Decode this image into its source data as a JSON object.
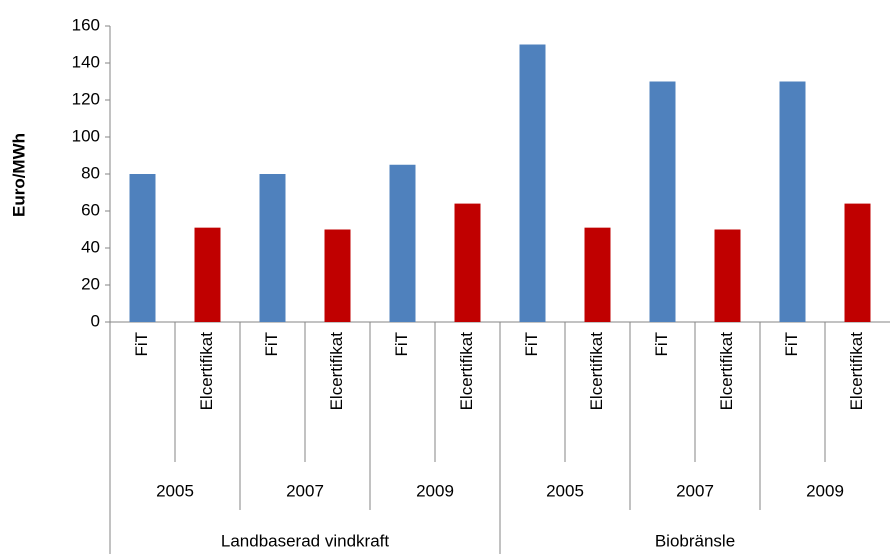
{
  "chart_data": {
    "type": "bar",
    "y_label": "Euro/MWh",
    "categories": [
      "FiT",
      "Elcertifikat",
      "FiT",
      "Elcertifikat",
      "FiT",
      "Elcertifikat",
      "FiT",
      "Elcertifikat",
      "FiT",
      "Elcertifikat",
      "FiT",
      "Elcertifikat"
    ],
    "year_groups": [
      "2005",
      "2007",
      "2009",
      "2005",
      "2007",
      "2009"
    ],
    "groups": [
      "Landbaserad vindkraft",
      "Biobränsle"
    ],
    "values": [
      80,
      51,
      80,
      50,
      85,
      64,
      150,
      51,
      130,
      50,
      130,
      64
    ],
    "colors": [
      "#4f81bd",
      "#c00000",
      "#4f81bd",
      "#c00000",
      "#4f81bd",
      "#c00000",
      "#4f81bd",
      "#c00000",
      "#4f81bd",
      "#c00000",
      "#4f81bd",
      "#c00000"
    ],
    "ylim": [
      0,
      160
    ],
    "yticks": [
      0,
      20,
      40,
      60,
      80,
      100,
      120,
      140,
      160
    ],
    "grid": false
  }
}
